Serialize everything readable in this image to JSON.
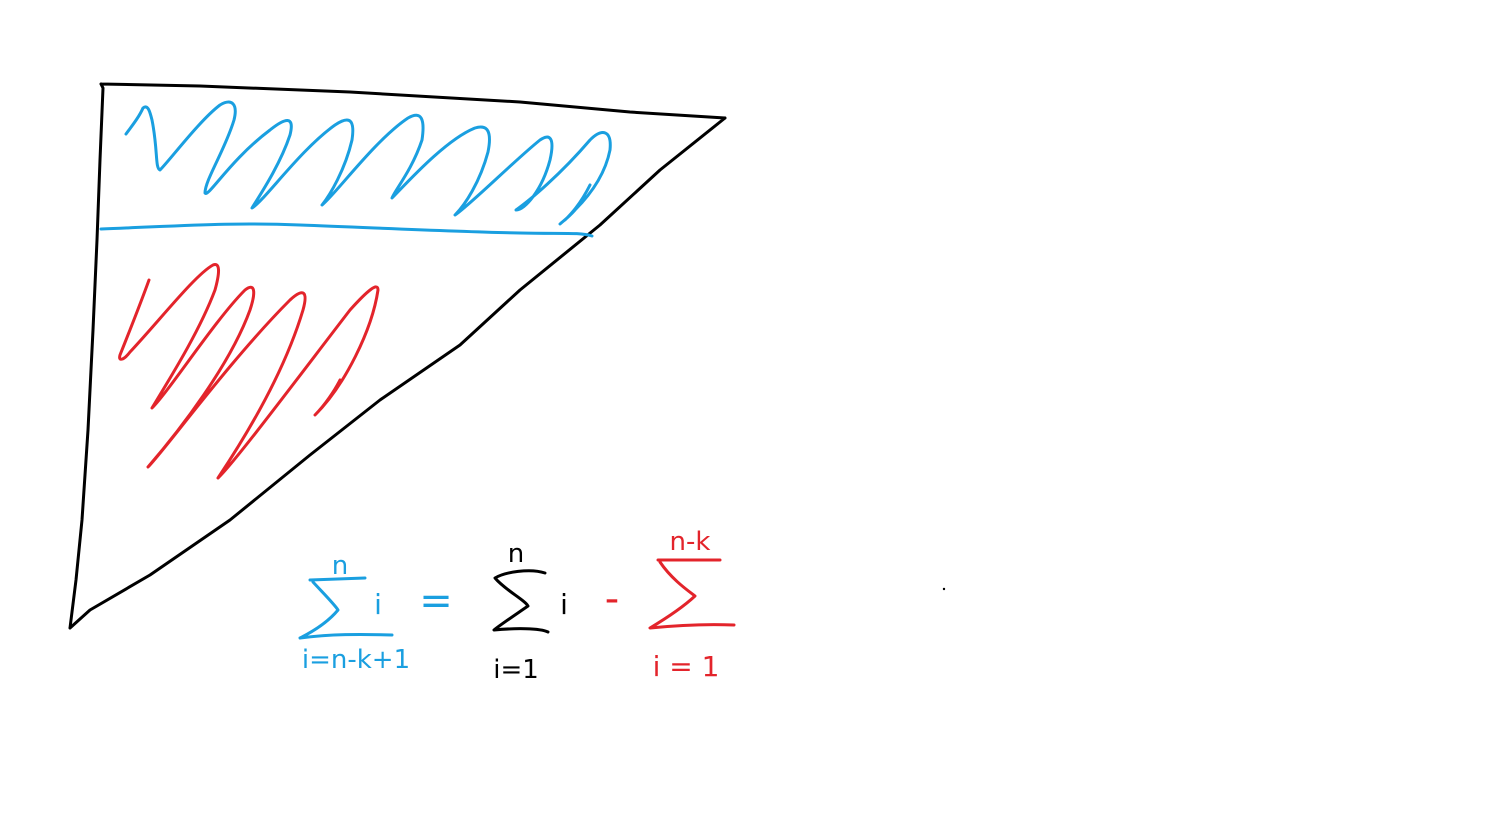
{
  "colors": {
    "background": "#ffffff",
    "triangle": "#000000",
    "top_region": "#1a9fe0",
    "bottom_region": "#e3242b"
  },
  "formula": {
    "lhs": {
      "upper": "n",
      "body": "i",
      "lower": "i=n-k+1",
      "color": "#1a9fe0"
    },
    "equals": "=",
    "middle": {
      "upper": "n",
      "body": "i",
      "lower": "i=1",
      "color": "#000000"
    },
    "minus": "-",
    "rhs": {
      "upper": "n-k",
      "lower": "i = 1",
      "color": "#e3242b"
    }
  }
}
